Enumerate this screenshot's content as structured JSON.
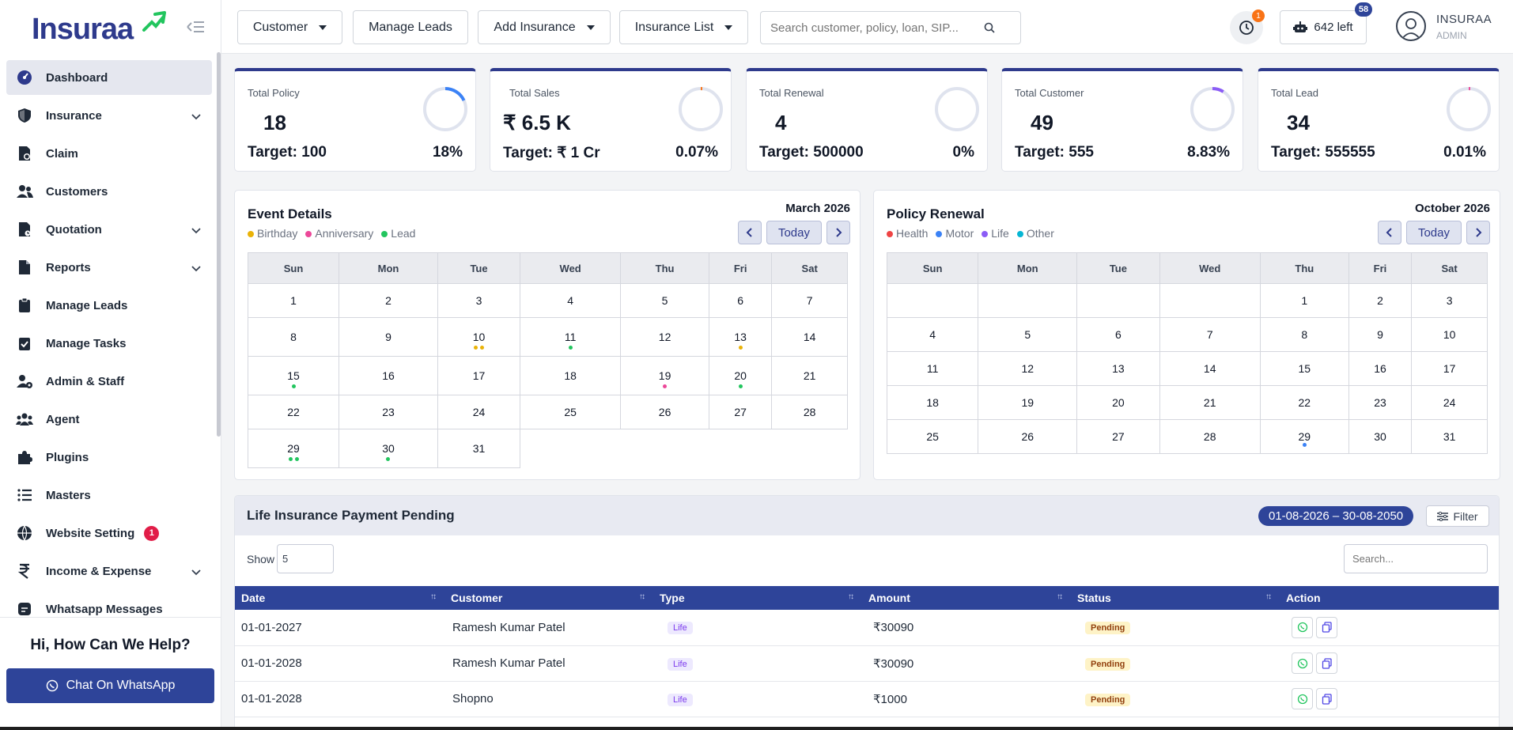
{
  "brand": {
    "name": "Insuraa"
  },
  "sidebar": {
    "items": [
      {
        "label": "Dashboard",
        "icon": "dashboard-icon",
        "active": true,
        "chevron": false
      },
      {
        "label": "Insurance",
        "icon": "shield-icon",
        "chevron": true
      },
      {
        "label": "Claim",
        "icon": "file-claim-icon",
        "chevron": false
      },
      {
        "label": "Customers",
        "icon": "users-icon",
        "chevron": false
      },
      {
        "label": "Quotation",
        "icon": "document-icon",
        "chevron": true
      },
      {
        "label": "Reports",
        "icon": "file-icon",
        "chevron": true
      },
      {
        "label": "Manage Leads",
        "icon": "clipboard-icon",
        "chevron": false
      },
      {
        "label": "Manage Tasks",
        "icon": "clipboard-check-icon",
        "chevron": false
      },
      {
        "label": "Admin & Staff",
        "icon": "user-gear-icon",
        "chevron": false
      },
      {
        "label": "Agent",
        "icon": "group-icon",
        "chevron": false
      },
      {
        "label": "Plugins",
        "icon": "puzzle-icon",
        "chevron": false
      },
      {
        "label": "Masters",
        "icon": "list-icon",
        "chevron": false
      },
      {
        "label": "Website Setting",
        "icon": "globe-icon",
        "chevron": false,
        "badge": "1"
      },
      {
        "label": "Income & Expense",
        "icon": "rupee-icon",
        "chevron": true
      },
      {
        "label": "Whatsapp Messages",
        "icon": "whatsapp-icon",
        "chevron": false
      }
    ],
    "help_title": "Hi, How Can We Help?",
    "whatsapp_button": "Chat On WhatsApp"
  },
  "topbar": {
    "customer": "Customer",
    "manage_leads": "Manage Leads",
    "add_insurance": "Add Insurance",
    "insurance_list": "Insurance List",
    "search_placeholder": "Search customer, policy, loan, SIP...",
    "notification_count": "1",
    "credits_label": "642 left",
    "credits_badge": "58",
    "user_name": "INSURAA",
    "user_role": "ADMIN"
  },
  "stats": [
    {
      "title": "Total Policy",
      "value": "18",
      "target": "Target: 100",
      "pct": "18%",
      "fraction": 0.18,
      "ring_color": "#3b82f6"
    },
    {
      "title": "Total Sales",
      "value": "₹ 6.5 K",
      "target": "Target: ₹ 1 Cr",
      "pct": "0.07%",
      "fraction": 0.0007,
      "ring_color": "#f97316"
    },
    {
      "title": "Total Renewal",
      "value": "4",
      "target": "Target: 500000",
      "pct": "0%",
      "fraction": 0,
      "ring_color": "#10b981"
    },
    {
      "title": "Total Customer",
      "value": "49",
      "target": "Target: 555",
      "pct": "8.83%",
      "fraction": 0.0883,
      "ring_color": "#8b5cf6"
    },
    {
      "title": "Total Lead",
      "value": "34",
      "target": "Target: 555555",
      "pct": "0.01%",
      "fraction": 0.0001,
      "ring_color": "#ec4899"
    }
  ],
  "events": {
    "title": "Event Details",
    "month": "March 2026",
    "today": "Today",
    "legend": [
      {
        "label": "Birthday",
        "color": "#eab308"
      },
      {
        "label": "Anniversary",
        "color": "#ec4899"
      },
      {
        "label": "Lead",
        "color": "#22c55e"
      }
    ],
    "weekdays": [
      "Sun",
      "Mon",
      "Tue",
      "Wed",
      "Thu",
      "Fri",
      "Sat"
    ],
    "weeks": [
      [
        "1",
        "2",
        "3",
        "4",
        "5",
        "6",
        "7"
      ],
      [
        "8",
        "9",
        "10",
        "11",
        "12",
        "13",
        "14"
      ],
      [
        "15",
        "16",
        "17",
        "18",
        "19",
        "20",
        "21"
      ],
      [
        "22",
        "23",
        "24",
        "25",
        "26",
        "27",
        "28"
      ],
      [
        "29",
        "30",
        "31",
        "",
        "",
        "",
        ""
      ]
    ],
    "dots": {
      "10": [
        "#eab308",
        "#eab308"
      ],
      "11": [
        "#22c55e"
      ],
      "13": [
        "#eab308"
      ],
      "15": [
        "#22c55e"
      ],
      "19": [
        "#ec4899"
      ],
      "20": [
        "#22c55e"
      ],
      "29": [
        "#22c55e",
        "#22c55e"
      ],
      "30": [
        "#22c55e"
      ]
    }
  },
  "renewal": {
    "title": "Policy Renewal",
    "month": "October 2026",
    "today": "Today",
    "legend": [
      {
        "label": "Health",
        "color": "#ef4444"
      },
      {
        "label": "Motor",
        "color": "#3b82f6"
      },
      {
        "label": "Life",
        "color": "#8b5cf6"
      },
      {
        "label": "Other",
        "color": "#06b6d4"
      }
    ],
    "weekdays": [
      "Sun",
      "Mon",
      "Tue",
      "Wed",
      "Thu",
      "Fri",
      "Sat"
    ],
    "weeks": [
      [
        "",
        "",
        "",
        "",
        "1",
        "2",
        "3"
      ],
      [
        "4",
        "5",
        "6",
        "7",
        "8",
        "9",
        "10"
      ],
      [
        "11",
        "12",
        "13",
        "14",
        "15",
        "16",
        "17"
      ],
      [
        "18",
        "19",
        "20",
        "21",
        "22",
        "23",
        "24"
      ],
      [
        "25",
        "26",
        "27",
        "28",
        "29",
        "30",
        "31"
      ]
    ],
    "dots": {
      "29": [
        "#3b82f6"
      ]
    }
  },
  "payments": {
    "title": "Life Insurance Payment Pending",
    "date_range": "01-08-2026 – 30-08-2050",
    "filter": "Filter",
    "show_label": "Show",
    "show_value": "5",
    "search_placeholder": "Search...",
    "columns": [
      "Date",
      "Customer",
      "Type",
      "Amount",
      "Status",
      "Action"
    ],
    "rows": [
      {
        "date": "01-01-2027",
        "customer": "Ramesh Kumar Patel",
        "type": "Life",
        "amount": "₹30090",
        "status": "Pending"
      },
      {
        "date": "01-01-2028",
        "customer": "Ramesh Kumar Patel",
        "type": "Life",
        "amount": "₹30090",
        "status": "Pending"
      },
      {
        "date": "01-01-2028",
        "customer": "Shopno",
        "type": "Life",
        "amount": "₹1000",
        "status": "Pending"
      }
    ]
  }
}
